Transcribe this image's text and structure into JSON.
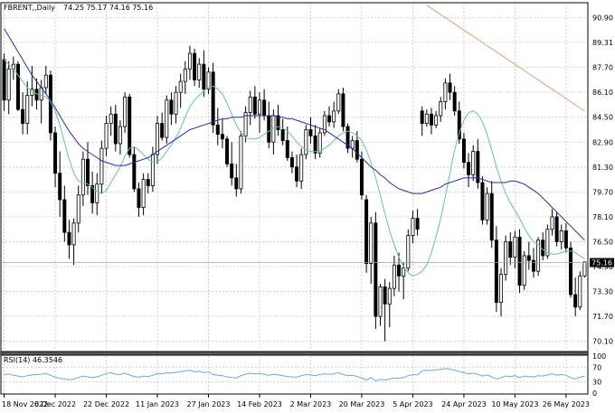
{
  "header": {
    "symbol": "FBRENT,,Daily",
    "ohlc": "74.25 75.17 74.16 75.16"
  },
  "rsi_header": {
    "label": "RSI(14) 46.3546"
  },
  "colors": {
    "candle_bull_body": "#ffffff",
    "candle_bear_body": "#000000",
    "candle_wick": "#000000",
    "ma_fast": "#5cc8a0",
    "ma_slow": "#2a2ab0",
    "ma_long": "#e8a070",
    "rsi_line": "#6aa8e8",
    "grid": "#c8c8c8"
  },
  "chart_data": [
    {
      "type": "candlestick",
      "title": "FBRENT,,Daily",
      "ylim": [
        69.5,
        91.8
      ],
      "y_ticks": [
        "90.90",
        "89.31",
        "87.70",
        "86.10",
        "84.50",
        "82.90",
        "81.30",
        "79.70",
        "78.10",
        "76.50",
        "74.90",
        "73.30",
        "71.70",
        "70.10"
      ],
      "current_price": "75.16",
      "x_ticks": [
        "18 Nov 2022",
        "6 Dec 2022",
        "22 Dec 2022",
        "11 Jan 2023",
        "27 Jan 2023",
        "14 Feb 2023",
        "2 Mar 2023",
        "20 Mar 2023",
        "5 Apr 2023",
        "24 Apr 2023",
        "10 May 2023",
        "26 May 2023"
      ],
      "grid": true,
      "candles_ohlc": [
        [
          88.2,
          88.6,
          84.9,
          85.6
        ],
        [
          85.6,
          88.1,
          84.7,
          87.6
        ],
        [
          87.6,
          88.4,
          86.9,
          87.9
        ],
        [
          87.9,
          88.1,
          84.9,
          85.0
        ],
        [
          85.0,
          86.1,
          83.4,
          84.1
        ],
        [
          84.1,
          86.8,
          83.4,
          85.9
        ],
        [
          85.9,
          87.8,
          85.2,
          86.3
        ],
        [
          86.3,
          87.0,
          85.0,
          85.6
        ],
        [
          85.6,
          86.9,
          84.1,
          86.4
        ],
        [
          86.4,
          87.8,
          86.0,
          87.2
        ],
        [
          87.2,
          87.5,
          83.0,
          83.5
        ],
        [
          83.5,
          83.9,
          80.0,
          80.9
        ],
        [
          80.9,
          82.3,
          78.1,
          79.2
        ],
        [
          79.2,
          80.1,
          76.5,
          77.1
        ],
        [
          77.1,
          77.9,
          75.4,
          76.3
        ],
        [
          76.3,
          78.0,
          75.0,
          77.7
        ],
        [
          77.7,
          80.1,
          77.1,
          79.5
        ],
        [
          79.5,
          82.3,
          78.8,
          81.8
        ],
        [
          81.8,
          82.9,
          79.5,
          80.1
        ],
        [
          80.1,
          81.0,
          78.3,
          79.0
        ],
        [
          79.0,
          80.9,
          78.2,
          80.2
        ],
        [
          80.2,
          83.0,
          79.6,
          82.5
        ],
        [
          82.5,
          84.6,
          82.0,
          84.1
        ],
        [
          84.1,
          85.2,
          83.3,
          84.7
        ],
        [
          84.7,
          85.3,
          82.3,
          82.8
        ],
        [
          82.8,
          84.3,
          82.1,
          83.9
        ],
        [
          83.9,
          86.1,
          83.5,
          85.8
        ],
        [
          85.8,
          86.0,
          81.9,
          82.1
        ],
        [
          82.1,
          82.6,
          79.7,
          79.9
        ],
        [
          79.9,
          80.3,
          78.1,
          78.7
        ],
        [
          78.7,
          80.9,
          78.2,
          80.5
        ],
        [
          80.5,
          80.9,
          79.6,
          80.1
        ],
        [
          80.1,
          82.6,
          79.7,
          82.1
        ],
        [
          82.1,
          84.6,
          81.5,
          84.1
        ],
        [
          84.1,
          84.8,
          83.0,
          83.2
        ],
        [
          83.2,
          85.9,
          82.8,
          85.6
        ],
        [
          85.6,
          86.1,
          84.0,
          84.7
        ],
        [
          84.7,
          86.5,
          84.1,
          86.1
        ],
        [
          86.1,
          87.3,
          85.1,
          86.8
        ],
        [
          86.8,
          88.1,
          86.0,
          87.6
        ],
        [
          87.6,
          89.1,
          86.9,
          88.6
        ],
        [
          88.6,
          88.9,
          86.5,
          86.9
        ],
        [
          86.9,
          88.3,
          86.4,
          87.9
        ],
        [
          87.9,
          88.8,
          85.8,
          86.3
        ],
        [
          86.3,
          87.7,
          86.0,
          87.4
        ],
        [
          87.4,
          88.0,
          83.5,
          84.0
        ],
        [
          84.0,
          85.1,
          82.7,
          83.4
        ],
        [
          83.4,
          84.4,
          82.5,
          83.1
        ],
        [
          83.1,
          83.3,
          81.3,
          81.5
        ],
        [
          81.5,
          82.9,
          80.1,
          80.6
        ],
        [
          80.6,
          81.5,
          79.4,
          79.9
        ],
        [
          79.9,
          83.6,
          79.6,
          83.3
        ],
        [
          83.3,
          85.2,
          82.9,
          84.8
        ],
        [
          84.8,
          86.2,
          84.0,
          85.8
        ],
        [
          85.8,
          86.5,
          84.4,
          84.7
        ],
        [
          84.7,
          86.1,
          83.5,
          85.6
        ],
        [
          85.6,
          86.3,
          84.3,
          84.6
        ],
        [
          84.6,
          85.5,
          82.5,
          82.9
        ],
        [
          82.9,
          85.0,
          82.1,
          84.6
        ],
        [
          84.6,
          85.3,
          83.3,
          83.7
        ],
        [
          83.7,
          84.4,
          82.7,
          83.0
        ],
        [
          83.0,
          83.9,
          81.7,
          81.9
        ],
        [
          81.9,
          82.3,
          80.9,
          81.3
        ],
        [
          81.3,
          82.1,
          80.0,
          80.4
        ],
        [
          80.4,
          82.5,
          79.9,
          82.1
        ],
        [
          82.1,
          84.0,
          81.8,
          83.7
        ],
        [
          83.7,
          84.5,
          82.8,
          83.3
        ],
        [
          83.3,
          84.0,
          81.8,
          82.2
        ],
        [
          82.2,
          83.8,
          81.9,
          83.5
        ],
        [
          83.5,
          84.9,
          83.3,
          84.6
        ],
        [
          84.6,
          85.2,
          83.9,
          84.2
        ],
        [
          84.2,
          85.5,
          83.8,
          84.9
        ],
        [
          84.9,
          86.3,
          84.7,
          86.0
        ],
        [
          86.0,
          86.4,
          83.6,
          83.9
        ],
        [
          83.9,
          84.1,
          82.2,
          82.5
        ],
        [
          82.5,
          83.3,
          81.9,
          83.0
        ],
        [
          83.0,
          83.6,
          81.6,
          81.8
        ],
        [
          81.8,
          82.3,
          79.2,
          79.5
        ],
        [
          79.2,
          79.5,
          74.5,
          75.1
        ],
        [
          75.1,
          78.1,
          73.8,
          77.7
        ],
        [
          77.7,
          78.4,
          70.9,
          71.7
        ],
        [
          71.7,
          73.8,
          71.1,
          73.6
        ],
        [
          73.6,
          74.1,
          70.1,
          72.5
        ],
        [
          72.5,
          73.9,
          71.0,
          73.5
        ],
        [
          73.5,
          75.6,
          73.0,
          75.0
        ],
        [
          75.0,
          75.8,
          73.3,
          74.3
        ],
        [
          74.3,
          75.2,
          72.8,
          74.8
        ],
        [
          74.8,
          77.3,
          74.6,
          76.9
        ],
        [
          76.9,
          78.5,
          76.4,
          78.0
        ],
        [
          78.0,
          78.6,
          76.9,
          77.3
        ],
        [
          84.9,
          85.2,
          83.3,
          84.1
        ],
        [
          84.1,
          85.0,
          83.9,
          84.7
        ],
        [
          84.7,
          85.1,
          83.4,
          84.0
        ],
        [
          84.0,
          84.9,
          83.8,
          84.6
        ],
        [
          84.6,
          85.8,
          84.2,
          85.5
        ],
        [
          85.5,
          87.0,
          85.0,
          86.7
        ],
        [
          86.7,
          87.3,
          85.6,
          86.1
        ],
        [
          86.1,
          86.5,
          84.6,
          84.9
        ],
        [
          84.9,
          85.5,
          82.8,
          83.1
        ],
        [
          83.1,
          83.5,
          81.2,
          81.6
        ],
        [
          81.6,
          82.2,
          80.0,
          80.8
        ],
        [
          80.8,
          82.7,
          80.4,
          82.3
        ],
        [
          82.3,
          83.1,
          79.9,
          80.3
        ],
        [
          80.3,
          80.7,
          77.6,
          77.9
        ],
        [
          77.9,
          80.0,
          77.6,
          79.6
        ],
        [
          79.6,
          80.4,
          76.1,
          76.6
        ],
        [
          76.6,
          77.5,
          72.0,
          72.6
        ],
        [
          72.6,
          74.8,
          71.7,
          74.4
        ],
        [
          74.4,
          76.9,
          74.0,
          76.5
        ],
        [
          76.5,
          77.1,
          75.0,
          75.5
        ],
        [
          75.5,
          77.2,
          74.8,
          76.8
        ],
        [
          76.8,
          77.3,
          73.2,
          73.7
        ],
        [
          73.7,
          75.9,
          73.4,
          75.6
        ],
        [
          75.6,
          76.5,
          74.7,
          75.3
        ],
        [
          75.3,
          76.1,
          74.2,
          74.6
        ],
        [
          74.6,
          76.8,
          74.3,
          76.6
        ],
        [
          76.6,
          77.1,
          75.3,
          75.6
        ],
        [
          75.6,
          77.6,
          75.4,
          77.3
        ],
        [
          77.3,
          78.6,
          76.9,
          78.1
        ],
        [
          78.1,
          78.4,
          76.2,
          76.5
        ],
        [
          76.5,
          77.6,
          76.0,
          77.2
        ],
        [
          77.2,
          77.7,
          75.8,
          76.1
        ],
        [
          76.1,
          76.5,
          72.9,
          73.1
        ],
        [
          73.1,
          74.2,
          71.7,
          72.3
        ],
        [
          72.3,
          74.6,
          72.1,
          74.3
        ],
        [
          74.3,
          75.2,
          74.2,
          75.2
        ]
      ],
      "ma_fast_values": [
        88.2,
        87.9,
        87.6,
        87.2,
        86.8,
        86.4,
        86.2,
        86.0,
        85.9,
        85.8,
        85.5,
        84.9,
        84.0,
        82.9,
        81.8,
        80.9,
        80.4,
        80.3,
        80.2,
        80.0,
        79.7,
        79.6,
        79.8,
        80.3,
        80.8,
        81.3,
        82.0,
        82.5,
        82.6,
        82.4,
        82.1,
        81.8,
        81.6,
        81.6,
        81.9,
        82.3,
        82.7,
        83.2,
        83.8,
        84.5,
        85.2,
        85.6,
        85.9,
        86.2,
        86.4,
        86.5,
        86.3,
        86.0,
        85.4,
        84.7,
        84.0,
        83.5,
        83.2,
        83.1,
        83.1,
        83.2,
        83.4,
        83.6,
        83.8,
        83.9,
        83.8,
        83.6,
        83.3,
        82.9,
        82.6,
        82.4,
        82.3,
        82.3,
        82.3,
        82.5,
        82.7,
        83.0,
        83.3,
        83.5,
        83.6,
        83.5,
        83.3,
        83.0,
        82.4,
        81.6,
        80.6,
        79.5,
        78.3,
        77.2,
        76.3,
        75.5,
        74.9,
        74.5,
        74.3,
        74.4,
        74.6,
        75.0,
        75.8,
        76.8,
        78.0,
        79.4,
        80.9,
        82.4,
        83.5,
        84.3,
        84.8,
        84.9,
        84.7,
        84.2,
        83.4,
        82.4,
        81.3,
        80.4,
        79.6,
        79.0,
        78.5,
        78.0,
        77.4,
        76.9,
        76.5,
        76.3,
        76.0,
        75.8,
        75.7,
        75.7,
        75.8,
        75.9,
        75.9,
        75.8,
        75.6,
        75.4
      ],
      "ma_slow_values": [
        90.2,
        89.7,
        89.2,
        88.7,
        88.2,
        87.7,
        87.2,
        86.8,
        86.4,
        86.0,
        85.6,
        85.1,
        84.6,
        84.1,
        83.6,
        83.2,
        82.8,
        82.5,
        82.3,
        82.1,
        81.9,
        81.7,
        81.6,
        81.5,
        81.4,
        81.4,
        81.4,
        81.5,
        81.6,
        81.7,
        81.8,
        81.9,
        82.1,
        82.3,
        82.5,
        82.7,
        82.9,
        83.1,
        83.3,
        83.5,
        83.7,
        83.8,
        83.9,
        84.0,
        84.1,
        84.2,
        84.3,
        84.4,
        84.4,
        84.5,
        84.5,
        84.5,
        84.6,
        84.6,
        84.6,
        84.6,
        84.6,
        84.6,
        84.6,
        84.5,
        84.5,
        84.4,
        84.4,
        84.3,
        84.2,
        84.1,
        84.0,
        83.9,
        83.8,
        83.7,
        83.5,
        83.3,
        83.1,
        82.9,
        82.7,
        82.5,
        82.2,
        81.9,
        81.6,
        81.3,
        81.1,
        80.8,
        80.6,
        80.3,
        80.1,
        79.9,
        79.8,
        79.7,
        79.6,
        79.6,
        79.6,
        79.7,
        79.8,
        79.9,
        80.0,
        80.2,
        80.3,
        80.4,
        80.5,
        80.6,
        80.6,
        80.6,
        80.6,
        80.5,
        80.4,
        80.3,
        80.3,
        80.3,
        80.3,
        80.4,
        80.4,
        80.3,
        80.2,
        80.0,
        79.8,
        79.6,
        79.3,
        79.0,
        78.7,
        78.4,
        78.1,
        77.8,
        77.5,
        77.2,
        76.9,
        76.6
      ],
      "ma_long_values": [
        91.7,
        91.5,
        91.3,
        91.1,
        90.9,
        90.7,
        90.5,
        90.3,
        90.1,
        89.9,
        89.7,
        89.5,
        89.3,
        89.1,
        88.9,
        88.7,
        88.5,
        88.3,
        88.1,
        87.9,
        87.7,
        87.5,
        87.3,
        87.1,
        86.9,
        86.7,
        86.5,
        86.3,
        86.1,
        85.9,
        85.7,
        85.5,
        85.3,
        85.1,
        84.9
      ],
      "ma_long_start_index": 91
    },
    {
      "type": "line",
      "title": "RSI(14) 46.3546",
      "ylim": [
        0,
        100
      ],
      "y_ticks": [
        "100",
        "70",
        "30",
        "0"
      ],
      "series": [
        {
          "name": "RSI(14) 46.3546",
          "values": [
            50,
            52,
            48,
            46,
            44,
            47,
            49,
            50,
            51,
            53,
            48,
            43,
            40,
            38,
            36,
            38,
            42,
            46,
            44,
            42,
            44,
            48,
            53,
            55,
            51,
            50,
            54,
            49,
            45,
            43,
            46,
            45,
            48,
            53,
            52,
            55,
            54,
            56,
            58,
            60,
            62,
            57,
            59,
            55,
            57,
            50,
            48,
            47,
            44,
            42,
            41,
            47,
            51,
            54,
            52,
            53,
            51,
            48,
            51,
            49,
            47,
            45,
            44,
            43,
            47,
            50,
            49,
            47,
            50,
            52,
            51,
            52,
            55,
            50,
            47,
            48,
            45,
            41,
            35,
            42,
            33,
            37,
            35,
            38,
            41,
            40,
            42,
            47,
            50,
            49,
            60,
            62,
            61,
            63,
            64,
            66,
            65,
            62,
            58,
            55,
            52,
            54,
            51,
            46,
            49,
            44,
            38,
            42,
            46,
            45,
            47,
            42,
            46,
            45,
            44,
            47,
            46,
            49,
            52,
            48,
            50,
            48,
            42,
            38,
            43,
            46
          ]
        }
      ]
    }
  ]
}
